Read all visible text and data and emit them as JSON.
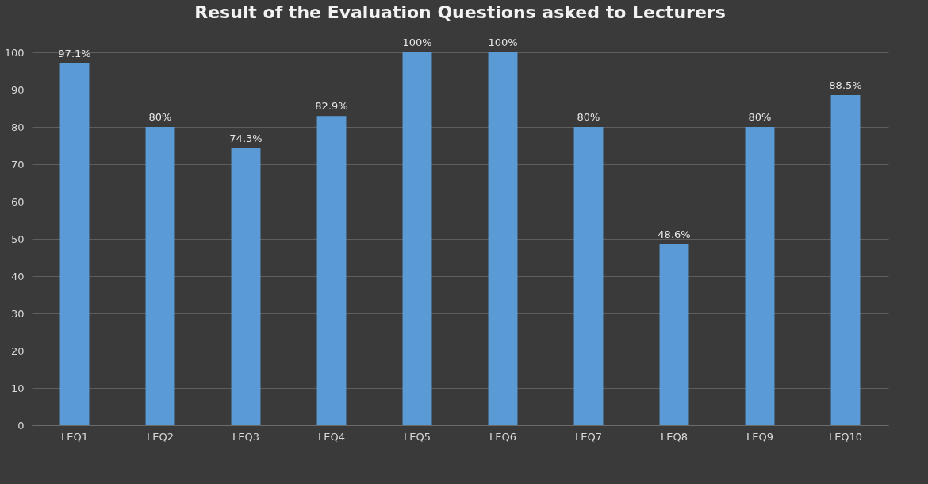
{
  "chart_data": {
    "type": "bar",
    "title": "Result of the Evaluation Questions asked to Lecturers",
    "categories": [
      "LEQ1",
      "LEQ2",
      "LEQ3",
      "LEQ4",
      "LEQ5",
      "LEQ6",
      "LEQ7",
      "LEQ8",
      "LEQ9",
      "LEQ10"
    ],
    "values": [
      97.1,
      80,
      74.3,
      82.9,
      100,
      100,
      80,
      48.6,
      80,
      88.5
    ],
    "value_labels": [
      "97.1%",
      "80%",
      "74.3%",
      "82.9%",
      "100%",
      "100%",
      "80%",
      "48.6%",
      "80%",
      "88.5%"
    ],
    "color": "#5b9bd5",
    "ylim": [
      0,
      100
    ],
    "yticks": [
      0,
      10,
      20,
      30,
      40,
      50,
      60,
      70,
      80,
      90,
      100
    ],
    "grid": "y"
  }
}
